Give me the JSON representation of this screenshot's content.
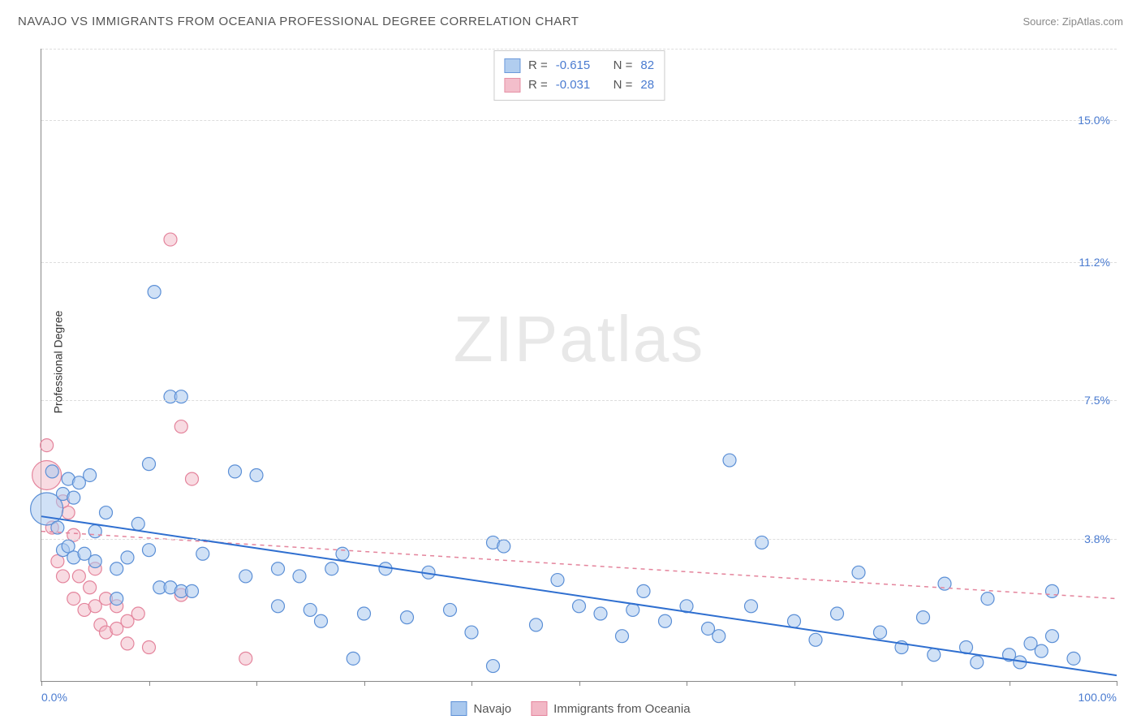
{
  "title": "NAVAJO VS IMMIGRANTS FROM OCEANIA PROFESSIONAL DEGREE CORRELATION CHART",
  "source_prefix": "Source: ",
  "source_name": "ZipAtlas.com",
  "watermark_zip": "ZIP",
  "watermark_atlas": "atlas",
  "y_axis_label": "Professional Degree",
  "chart": {
    "xlim": [
      0,
      100
    ],
    "ylim": [
      0,
      16.9
    ],
    "x_ticks_minor": [
      0,
      10,
      20,
      30,
      40,
      50,
      60,
      70,
      80,
      90,
      100
    ],
    "x_tick_labels": [
      {
        "pos": 0,
        "label": "0.0%",
        "align": "left"
      },
      {
        "pos": 100,
        "label": "100.0%",
        "align": "right"
      }
    ],
    "y_gridlines": [
      3.8,
      7.5,
      11.2,
      15.0,
      16.9
    ],
    "y_tick_labels": [
      {
        "pos": 3.8,
        "label": "3.8%"
      },
      {
        "pos": 7.5,
        "label": "7.5%"
      },
      {
        "pos": 11.2,
        "label": "11.2%"
      },
      {
        "pos": 15.0,
        "label": "15.0%"
      }
    ],
    "grid_color": "#dddddd",
    "axis_color": "#888888",
    "tick_label_color": "#4a7bd0",
    "background_color": "#ffffff"
  },
  "series": {
    "navajo": {
      "label": "Navajo",
      "fill": "#a9c8ee",
      "stroke": "#5b8fd6",
      "fill_opacity": 0.55,
      "line_color": "#2f6fd0",
      "line_width": 2,
      "line_dash": "none",
      "regression": {
        "x1": 0,
        "y1": 4.4,
        "x2": 100,
        "y2": 0.15
      },
      "r_value": "-0.615",
      "n_value": "82",
      "marker_r": 8,
      "points": [
        {
          "x": 0.5,
          "y": 4.6,
          "r": 20
        },
        {
          "x": 1,
          "y": 5.6
        },
        {
          "x": 1.5,
          "y": 4.1
        },
        {
          "x": 2,
          "y": 3.5
        },
        {
          "x": 2,
          "y": 5.0
        },
        {
          "x": 2.5,
          "y": 5.4
        },
        {
          "x": 2.5,
          "y": 3.6
        },
        {
          "x": 3,
          "y": 3.3
        },
        {
          "x": 3,
          "y": 4.9
        },
        {
          "x": 3.5,
          "y": 5.3
        },
        {
          "x": 4,
          "y": 3.4
        },
        {
          "x": 4.5,
          "y": 5.5
        },
        {
          "x": 5,
          "y": 4.0
        },
        {
          "x": 5,
          "y": 3.2
        },
        {
          "x": 6,
          "y": 4.5
        },
        {
          "x": 7,
          "y": 3.0
        },
        {
          "x": 7,
          "y": 2.2
        },
        {
          "x": 8,
          "y": 3.3
        },
        {
          "x": 9,
          "y": 4.2
        },
        {
          "x": 10,
          "y": 5.8
        },
        {
          "x": 10,
          "y": 3.5
        },
        {
          "x": 10.5,
          "y": 10.4
        },
        {
          "x": 11,
          "y": 2.5
        },
        {
          "x": 12,
          "y": 7.6
        },
        {
          "x": 12,
          "y": 2.5
        },
        {
          "x": 13,
          "y": 2.4
        },
        {
          "x": 13,
          "y": 7.6
        },
        {
          "x": 14,
          "y": 2.4
        },
        {
          "x": 15,
          "y": 3.4
        },
        {
          "x": 18,
          "y": 5.6
        },
        {
          "x": 19,
          "y": 2.8
        },
        {
          "x": 20,
          "y": 5.5
        },
        {
          "x": 22,
          "y": 2.0
        },
        {
          "x": 22,
          "y": 3.0
        },
        {
          "x": 24,
          "y": 2.8
        },
        {
          "x": 25,
          "y": 1.9
        },
        {
          "x": 26,
          "y": 1.6
        },
        {
          "x": 27,
          "y": 3.0
        },
        {
          "x": 28,
          "y": 3.4
        },
        {
          "x": 29,
          "y": 0.6
        },
        {
          "x": 30,
          "y": 1.8
        },
        {
          "x": 32,
          "y": 3.0
        },
        {
          "x": 34,
          "y": 1.7
        },
        {
          "x": 36,
          "y": 2.9
        },
        {
          "x": 38,
          "y": 1.9
        },
        {
          "x": 40,
          "y": 1.3
        },
        {
          "x": 42,
          "y": 0.4
        },
        {
          "x": 42,
          "y": 3.7
        },
        {
          "x": 43,
          "y": 3.6
        },
        {
          "x": 46,
          "y": 1.5
        },
        {
          "x": 48,
          "y": 2.7
        },
        {
          "x": 50,
          "y": 2.0
        },
        {
          "x": 52,
          "y": 1.8
        },
        {
          "x": 54,
          "y": 1.2
        },
        {
          "x": 55,
          "y": 1.9
        },
        {
          "x": 56,
          "y": 2.4
        },
        {
          "x": 58,
          "y": 1.6
        },
        {
          "x": 60,
          "y": 2.0
        },
        {
          "x": 62,
          "y": 1.4
        },
        {
          "x": 63,
          "y": 1.2
        },
        {
          "x": 64,
          "y": 5.9
        },
        {
          "x": 66,
          "y": 2.0
        },
        {
          "x": 67,
          "y": 3.7
        },
        {
          "x": 70,
          "y": 1.6
        },
        {
          "x": 72,
          "y": 1.1
        },
        {
          "x": 74,
          "y": 1.8
        },
        {
          "x": 76,
          "y": 2.9
        },
        {
          "x": 78,
          "y": 1.3
        },
        {
          "x": 80,
          "y": 0.9
        },
        {
          "x": 82,
          "y": 1.7
        },
        {
          "x": 83,
          "y": 0.7
        },
        {
          "x": 84,
          "y": 2.6
        },
        {
          "x": 86,
          "y": 0.9
        },
        {
          "x": 87,
          "y": 0.5
        },
        {
          "x": 88,
          "y": 2.2
        },
        {
          "x": 90,
          "y": 0.7
        },
        {
          "x": 91,
          "y": 0.5
        },
        {
          "x": 92,
          "y": 1.0
        },
        {
          "x": 93,
          "y": 0.8
        },
        {
          "x": 94,
          "y": 1.2
        },
        {
          "x": 94,
          "y": 2.4
        },
        {
          "x": 96,
          "y": 0.6
        }
      ]
    },
    "oceania": {
      "label": "Immigrants from Oceania",
      "fill": "#f2b8c6",
      "stroke": "#e4849c",
      "fill_opacity": 0.5,
      "line_color": "#e4849c",
      "line_width": 1.5,
      "line_dash": "5,5",
      "regression": {
        "x1": 0,
        "y1": 4.0,
        "x2": 100,
        "y2": 2.2
      },
      "r_value": "-0.031",
      "n_value": "28",
      "marker_r": 8,
      "points": [
        {
          "x": 0.5,
          "y": 5.5,
          "r": 18
        },
        {
          "x": 0.5,
          "y": 6.3
        },
        {
          "x": 1,
          "y": 4.1
        },
        {
          "x": 1.5,
          "y": 3.2
        },
        {
          "x": 2,
          "y": 4.8
        },
        {
          "x": 2,
          "y": 2.8
        },
        {
          "x": 2.5,
          "y": 4.5
        },
        {
          "x": 3,
          "y": 3.9
        },
        {
          "x": 3,
          "y": 2.2
        },
        {
          "x": 3.5,
          "y": 2.8
        },
        {
          "x": 4,
          "y": 1.9
        },
        {
          "x": 4.5,
          "y": 2.5
        },
        {
          "x": 5,
          "y": 2.0
        },
        {
          "x": 5,
          "y": 3.0
        },
        {
          "x": 5.5,
          "y": 1.5
        },
        {
          "x": 6,
          "y": 2.2
        },
        {
          "x": 6,
          "y": 1.3
        },
        {
          "x": 7,
          "y": 2.0
        },
        {
          "x": 7,
          "y": 1.4
        },
        {
          "x": 8,
          "y": 1.6
        },
        {
          "x": 8,
          "y": 1.0
        },
        {
          "x": 9,
          "y": 1.8
        },
        {
          "x": 10,
          "y": 0.9
        },
        {
          "x": 12,
          "y": 11.8
        },
        {
          "x": 13,
          "y": 6.8
        },
        {
          "x": 13,
          "y": 2.3
        },
        {
          "x": 14,
          "y": 5.4
        },
        {
          "x": 19,
          "y": 0.6
        }
      ]
    }
  },
  "stat_legend": {
    "r_label": "R =",
    "n_label": "N ="
  },
  "bottom_legend_order": [
    "navajo",
    "oceania"
  ]
}
